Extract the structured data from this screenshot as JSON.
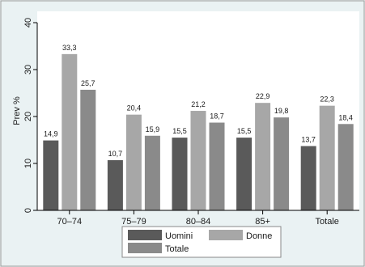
{
  "chart_data": {
    "type": "bar",
    "ylabel": "Prev %",
    "ylim": [
      0,
      40
    ],
    "yticks": [
      "0",
      "10",
      "20",
      "30",
      "40"
    ],
    "yticks_values": [
      0,
      10,
      20,
      30,
      40
    ],
    "grid": false,
    "legend_placement": "bottom",
    "categories": [
      "70–74",
      "75–79",
      "80–84",
      "85+",
      "Totale"
    ],
    "series": [
      {
        "name": "Uomini",
        "color": "#5a5a5a",
        "values": [
          14.9,
          10.7,
          15.5,
          15.5,
          13.7
        ],
        "labels": [
          "14,9",
          "10,7",
          "15,5",
          "15,5",
          "13,7"
        ]
      },
      {
        "name": "Donne",
        "color": "#a7a7a7",
        "values": [
          33.3,
          20.4,
          21.2,
          22.9,
          22.3
        ],
        "labels": [
          "33,3",
          "20,4",
          "21,2",
          "22,9",
          "22,3"
        ]
      },
      {
        "name": "Totale",
        "color": "#8a8a8a",
        "values": [
          25.7,
          15.9,
          18.7,
          19.8,
          18.4
        ],
        "labels": [
          "25,7",
          "15,9",
          "18,7",
          "19,8",
          "18,4"
        ]
      }
    ]
  }
}
